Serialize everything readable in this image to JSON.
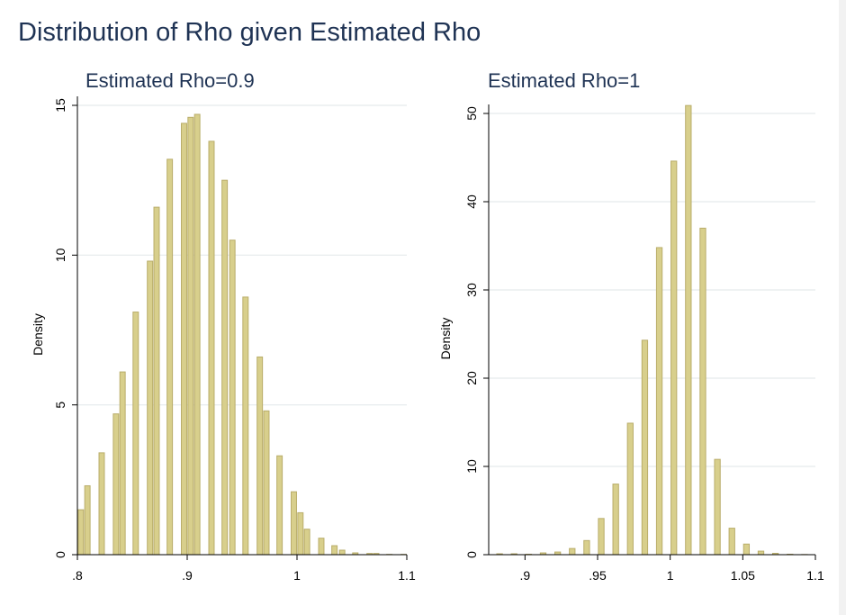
{
  "title": "Distribution of Rho given Estimated Rho",
  "colors": {
    "title": "#1f3354",
    "bar_fill": "#d8cf8c",
    "bar_edge": "#b9ad6a",
    "grid": "#e5e9ec"
  },
  "chart_data": [
    {
      "type": "bar",
      "title": "Estimated Rho=0.9",
      "xlabel": "",
      "ylabel": "Density",
      "xlim": [
        0.8,
        1.1
      ],
      "ylim": [
        0,
        15
      ],
      "xticks": [
        ".8",
        ".9",
        "1",
        "1.1"
      ],
      "yticks": [
        "0",
        "5",
        "10",
        "15"
      ],
      "ytick_values": [
        0,
        5,
        10,
        15
      ],
      "xtick_values": [
        0.8,
        0.9,
        1.0,
        1.1
      ],
      "grid": true,
      "bin_width": 0.00625,
      "x": [
        0.8,
        0.806,
        0.819,
        0.832,
        0.838,
        0.85,
        0.863,
        0.869,
        0.881,
        0.894,
        0.9,
        0.906,
        0.919,
        0.931,
        0.938,
        0.95,
        0.963,
        0.969,
        0.981,
        0.994,
        1.0,
        1.006,
        1.019,
        1.031,
        1.038,
        1.05,
        1.063,
        1.069,
        1.081,
        1.094
      ],
      "values": [
        1.5,
        2.3,
        3.4,
        4.7,
        6.1,
        8.1,
        9.8,
        11.6,
        13.2,
        14.4,
        14.6,
        14.7,
        13.8,
        12.5,
        10.5,
        8.6,
        6.6,
        4.8,
        3.3,
        2.1,
        1.4,
        0.85,
        0.55,
        0.3,
        0.15,
        0.06,
        0.04,
        0.04,
        0.01,
        0.01
      ]
    },
    {
      "type": "bar",
      "title": "Estimated Rho=1",
      "xlabel": "",
      "ylabel": "Density",
      "xlim": [
        0.875,
        1.1
      ],
      "ylim": [
        0,
        50
      ],
      "xticks": [
        ".9",
        ".95",
        "1",
        "1.05",
        "1.1"
      ],
      "yticks": [
        "0",
        "10",
        "20",
        "30",
        "40",
        "50"
      ],
      "ytick_values": [
        0,
        10,
        20,
        30,
        40,
        50
      ],
      "xtick_values": [
        0.9,
        0.95,
        1.0,
        1.05,
        1.1
      ],
      "grid": true,
      "bin_width": 0.005,
      "x": [
        0.88,
        0.885,
        0.89,
        0.895,
        0.9,
        0.905,
        0.91,
        0.915,
        0.92,
        0.925,
        0.93,
        0.935,
        0.94,
        0.945,
        0.95,
        0.955,
        0.96,
        0.965,
        0.97,
        0.975,
        0.98,
        0.985,
        0.99,
        0.995,
        1.0,
        1.005,
        1.01,
        1.015,
        1.02,
        1.025,
        1.03,
        1.035,
        1.04,
        1.045,
        1.05,
        1.055,
        1.06,
        1.065,
        1.07,
        1.075,
        1.08,
        1.085,
        1.09,
        1.095
      ],
      "values": [
        0.1,
        0,
        0.1,
        0,
        0.05,
        0,
        0.2,
        0,
        0.3,
        0,
        0.7,
        0,
        1.6,
        0,
        4.1,
        0,
        8.0,
        0,
        14.9,
        0,
        24.3,
        0,
        34.8,
        0,
        44.6,
        0,
        50.9,
        0,
        37.0,
        0,
        10.8,
        0,
        3.0,
        0,
        1.2,
        0,
        0.4,
        0,
        0.15,
        0,
        0.05,
        0,
        0.02,
        0
      ]
    }
  ]
}
